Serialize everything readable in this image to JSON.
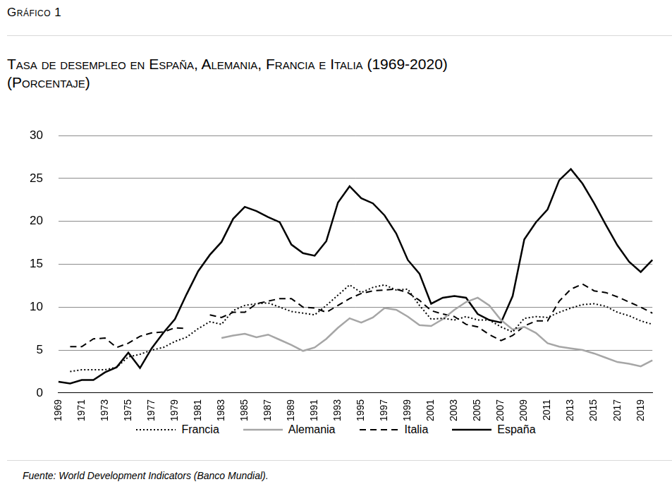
{
  "chart_data": {
    "type": "line",
    "header": "Gráfico 1",
    "title": "Tasa de desempleo en España, Alemania, Francia e Italia (1969-2020)",
    "subtitle": "(Porcentaje)",
    "source": "Fuente: World Development Indicators (Banco Mundial).",
    "categories": [
      "1969",
      null,
      "1971",
      null,
      "1973",
      null,
      "1975",
      null,
      "1977",
      null,
      "1979",
      null,
      "1981",
      null,
      "1983",
      null,
      "1985",
      null,
      "1987",
      null,
      "1989",
      null,
      "1991",
      null,
      "1993",
      null,
      "1995",
      null,
      "1997",
      null,
      "1999",
      null,
      "2001",
      null,
      "2003",
      null,
      "2005",
      null,
      "2007",
      null,
      "2009",
      null,
      "2011",
      null,
      "2013",
      null,
      "2015",
      null,
      "2017",
      null,
      "2019",
      null
    ],
    "series": [
      {
        "name": "Francia",
        "color": "#000000",
        "line_style": "dotted",
        "values": [
          null,
          2.5,
          2.7,
          2.7,
          2.7,
          3.0,
          4.2,
          4.5,
          5.0,
          5.3,
          6.0,
          6.5,
          7.5,
          8.3,
          8.0,
          9.6,
          10.2,
          10.4,
          10.5,
          10.0,
          9.5,
          9.3,
          9.1,
          10.2,
          11.4,
          12.6,
          11.7,
          12.3,
          12.6,
          12.0,
          12.1,
          10.2,
          8.6,
          8.7,
          8.5,
          8.9,
          8.5,
          8.5,
          7.7,
          7.1,
          8.7,
          8.9,
          8.8,
          9.4,
          9.9,
          10.3,
          10.4,
          10.1,
          9.4,
          9.0,
          8.4,
          8.0
        ]
      },
      {
        "name": "Alemania",
        "color": "#a6a6a6",
        "line_style": "solid",
        "values": [
          null,
          null,
          null,
          null,
          null,
          null,
          null,
          null,
          null,
          null,
          null,
          null,
          null,
          null,
          6.4,
          6.7,
          6.9,
          6.5,
          6.8,
          6.2,
          5.6,
          4.9,
          5.3,
          6.3,
          7.6,
          8.7,
          8.2,
          8.8,
          9.9,
          9.7,
          8.9,
          7.9,
          7.8,
          8.6,
          9.7,
          10.6,
          11.1,
          10.2,
          8.5,
          7.4,
          7.7,
          7.0,
          5.8,
          5.4,
          5.2,
          5.0,
          4.6,
          4.1,
          3.6,
          3.4,
          3.1,
          3.8
        ]
      },
      {
        "name": "Italia",
        "color": "#000000",
        "line_style": "dashed",
        "values": [
          null,
          5.4,
          5.4,
          6.3,
          6.4,
          5.3,
          5.8,
          6.6,
          7.0,
          7.1,
          7.6,
          7.5,
          null,
          9.1,
          8.8,
          9.4,
          9.4,
          10.4,
          10.7,
          11.0,
          11.0,
          10.0,
          9.9,
          9.4,
          10.2,
          11.0,
          11.6,
          11.9,
          12.0,
          12.1,
          11.7,
          10.8,
          9.6,
          9.2,
          8.9,
          8.0,
          7.7,
          6.8,
          6.1,
          6.7,
          7.8,
          8.4,
          8.4,
          10.7,
          12.1,
          12.7,
          11.9,
          11.7,
          11.2,
          10.6,
          10.0,
          9.3
        ]
      },
      {
        "name": "España",
        "color": "#000000",
        "line_style": "solid",
        "values": [
          1.3,
          1.1,
          1.5,
          1.5,
          2.4,
          3.0,
          4.7,
          2.9,
          5.2,
          7.0,
          8.6,
          11.5,
          14.2,
          16.1,
          17.6,
          20.3,
          21.7,
          21.2,
          20.5,
          19.9,
          17.3,
          16.3,
          16.0,
          17.7,
          22.2,
          24.1,
          22.7,
          22.1,
          20.7,
          18.6,
          15.5,
          13.9,
          10.4,
          11.1,
          11.3,
          11.1,
          9.2,
          8.5,
          8.2,
          11.3,
          17.9,
          19.9,
          21.4,
          24.8,
          26.1,
          24.4,
          22.1,
          19.6,
          17.2,
          15.3,
          14.1,
          15.5
        ]
      }
    ],
    "ylim": [
      0,
      30
    ],
    "yticks": [
      0,
      5,
      10,
      15,
      20,
      25,
      30
    ],
    "grid": true,
    "legend": "bottom"
  }
}
